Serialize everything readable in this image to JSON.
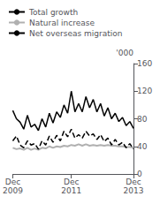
{
  "chart_data": {
    "type": "line",
    "categories": [
      "Dec\n2009",
      null,
      null,
      null,
      null,
      null,
      null,
      null,
      null,
      null,
      null,
      null,
      null,
      null,
      null,
      null,
      "Dec\n2011",
      null,
      null,
      null,
      null,
      null,
      null,
      null,
      null,
      null,
      null,
      null,
      null,
      null,
      null,
      null,
      null,
      "Dec\n2013"
    ],
    "y_label": "'000",
    "ylim": [
      0,
      160
    ],
    "yticks": [
      0,
      40,
      80,
      120,
      160
    ],
    "grid": false,
    "legend": "upper left",
    "series": [
      {
        "name": "Total growth",
        "color": "black",
        "line_style": "solid",
        "values": [
          92,
          80,
          75,
          65,
          85,
          68,
          72,
          63,
          80,
          68,
          88,
          74,
          90,
          82,
          100,
          88,
          120,
          90,
          102,
          90,
          112,
          96,
          108,
          90,
          102,
          84,
          96,
          80,
          88,
          76,
          82,
          70,
          76,
          66
        ]
      },
      {
        "name": "Natural increase",
        "color": "#b0b0b0",
        "line_style": "solid",
        "values": [
          38,
          36,
          37,
          35,
          38,
          35,
          37,
          35,
          38,
          37,
          40,
          38,
          40,
          39,
          41,
          40,
          42,
          41,
          43,
          41,
          43,
          41,
          42,
          41,
          42,
          41,
          42,
          41,
          41,
          40,
          40,
          39,
          39,
          38
        ]
      },
      {
        "name": "Net overseas migration",
        "color": "black",
        "line_style": "dashed",
        "values": [
          48,
          55,
          42,
          38,
          48,
          42,
          44,
          36,
          48,
          42,
          55,
          46,
          56,
          48,
          62,
          54,
          65,
          52,
          57,
          52,
          62,
          55,
          58,
          50,
          57,
          47,
          52,
          42,
          50,
          42,
          46,
          38,
          44,
          36
        ]
      }
    ]
  }
}
